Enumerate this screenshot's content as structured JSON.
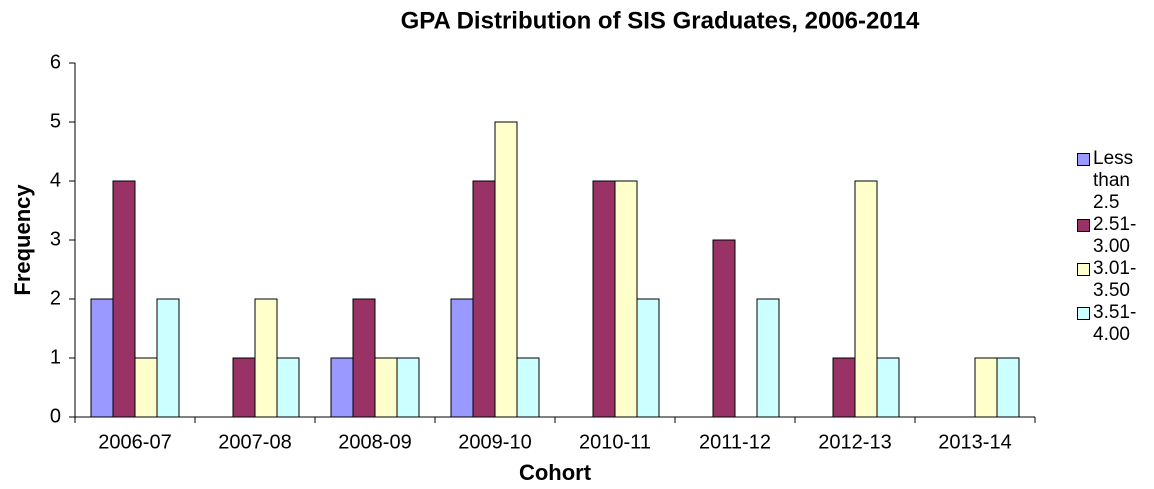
{
  "chart_data": {
    "type": "bar",
    "title": "GPA Distribution of SIS Graduates, 2006-2014",
    "x_label": "Cohort",
    "y_label": "Frequency",
    "categories": [
      "2006-07",
      "2007-08",
      "2008-09",
      "2009-10",
      "2010-11",
      "2011-12",
      "2012-13",
      "2013-14"
    ],
    "series": [
      {
        "name": "Less than 2.5",
        "color": "#9999ff",
        "values": [
          2,
          0,
          1,
          2,
          0,
          0,
          0,
          0
        ]
      },
      {
        "name": "2.51-3.00",
        "color": "#993366",
        "values": [
          4,
          1,
          2,
          4,
          4,
          3,
          1,
          0
        ]
      },
      {
        "name": "3.01-3.50",
        "color": "#ffffcc",
        "values": [
          1,
          2,
          1,
          5,
          4,
          0,
          4,
          1
        ]
      },
      {
        "name": "3.51-4.00",
        "color": "#ccffff",
        "values": [
          2,
          1,
          1,
          1,
          2,
          2,
          1,
          1
        ]
      }
    ],
    "ylim": [
      0,
      6
    ],
    "yticks": [
      0,
      1,
      2,
      3,
      4,
      5,
      6
    ],
    "legend": "right"
  }
}
